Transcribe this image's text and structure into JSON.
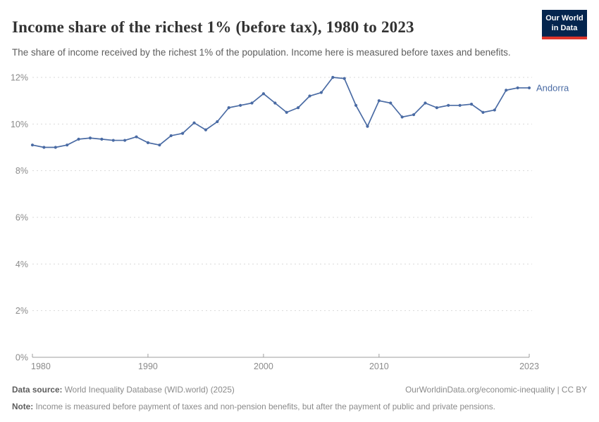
{
  "header": {
    "title": "Income share of the richest 1% (before tax), 1980 to 2023",
    "subtitle": "The share of income received by the richest 1% of the population. Income here is measured before taxes and benefits.",
    "logo_line1": "Our World",
    "logo_line2": "in Data"
  },
  "chart_data": {
    "type": "line",
    "title": "Income share of the richest 1% (before tax), 1980 to 2023",
    "xlabel": "",
    "ylabel": "",
    "xlim": [
      1980,
      2023
    ],
    "ylim": [
      0,
      12
    ],
    "grid": "horizontal-dashed",
    "legend_position": "end-of-line-label",
    "yticks": [
      0,
      2,
      4,
      6,
      8,
      10,
      12
    ],
    "ytick_labels": [
      "0%",
      "2%",
      "4%",
      "6%",
      "8%",
      "10%",
      "12%"
    ],
    "xticks": [
      1980,
      1990,
      2000,
      2010,
      2023
    ],
    "xtick_labels": [
      "1980",
      "1990",
      "2000",
      "2010",
      "2023"
    ],
    "series": [
      {
        "name": "Andorra",
        "color": "#4a6ba4",
        "x": [
          1980,
          1981,
          1982,
          1983,
          1984,
          1985,
          1986,
          1987,
          1988,
          1989,
          1990,
          1991,
          1992,
          1993,
          1994,
          1995,
          1996,
          1997,
          1998,
          1999,
          2000,
          2001,
          2002,
          2003,
          2004,
          2005,
          2006,
          2007,
          2008,
          2009,
          2010,
          2011,
          2012,
          2013,
          2014,
          2015,
          2016,
          2017,
          2018,
          2019,
          2020,
          2021,
          2022,
          2023
        ],
        "values": [
          9.1,
          9.0,
          9.0,
          9.1,
          9.35,
          9.4,
          9.35,
          9.3,
          9.3,
          9.45,
          9.2,
          9.1,
          9.5,
          9.6,
          10.05,
          9.75,
          10.1,
          10.7,
          10.8,
          10.9,
          11.3,
          10.9,
          10.5,
          10.7,
          11.2,
          11.35,
          12.0,
          11.95,
          10.8,
          9.9,
          11.0,
          10.9,
          10.3,
          10.4,
          10.9,
          10.7,
          10.8,
          10.8,
          10.85,
          10.5,
          10.6,
          11.45,
          11.55,
          11.55
        ]
      }
    ]
  },
  "footer": {
    "datasource_label": "Data source:",
    "datasource_text": "World Inequality Database (WID.world) (2025)",
    "attribution": "OurWorldinData.org/economic-inequality | CC BY",
    "note_label": "Note:",
    "note_text": "Income is measured before payment of taxes and non-pension benefits, but after the payment of public and private pensions."
  },
  "colors": {
    "line": "#4a6ba4",
    "grid": "#d9d9d9",
    "axis": "#9e9e9e",
    "tick_text": "#8b8b8b",
    "title_text": "#333333",
    "subtitle_text": "#5d5d5d",
    "logo_bg": "#04254e",
    "logo_accent": "#dd352b"
  }
}
